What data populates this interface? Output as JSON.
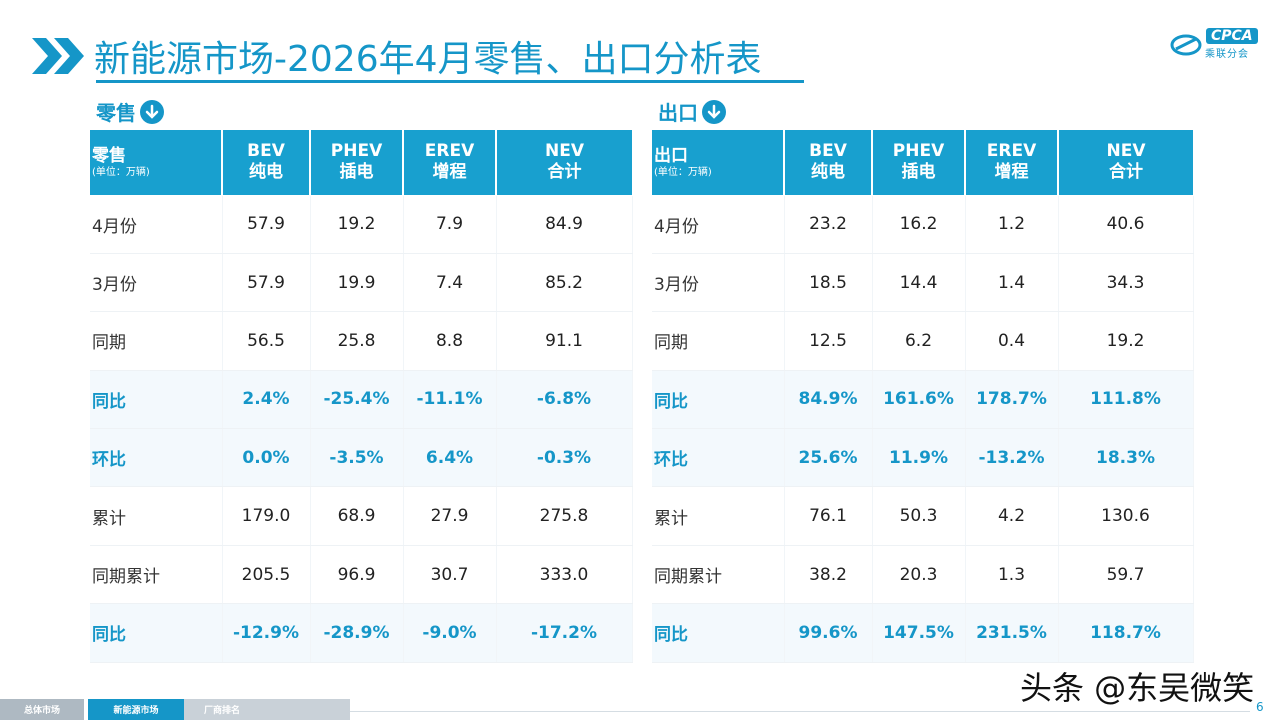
{
  "page_title": "新能源市场-2026年4月零售、出口分析表",
  "logo": {
    "en": "CPCA",
    "cn": "乘联分会"
  },
  "colors": {
    "accent": "#1596c8",
    "header_bg": "#18a0cf",
    "pct_row_bg": "#f3f9fd"
  },
  "retail": {
    "section_label": "零售",
    "header": {
      "label": "零售",
      "unit": "(单位：万辆)"
    },
    "columns": [
      {
        "en": "BEV",
        "cn": "纯电"
      },
      {
        "en": "PHEV",
        "cn": "插电"
      },
      {
        "en": "EREV",
        "cn": "增程"
      },
      {
        "en": "NEV",
        "cn": "合计"
      }
    ],
    "rows": [
      {
        "label": "4月份",
        "values": [
          "57.9",
          "19.2",
          "7.9",
          "84.9"
        ],
        "pct": false
      },
      {
        "label": "3月份",
        "values": [
          "57.9",
          "19.9",
          "7.4",
          "85.2"
        ],
        "pct": false
      },
      {
        "label": "同期",
        "values": [
          "56.5",
          "25.8",
          "8.8",
          "91.1"
        ],
        "pct": false
      },
      {
        "label": "同比",
        "values": [
          "2.4%",
          "-25.4%",
          "-11.1%",
          "-6.8%"
        ],
        "pct": true
      },
      {
        "label": "环比",
        "values": [
          "0.0%",
          "-3.5%",
          "6.4%",
          "-0.3%"
        ],
        "pct": true
      },
      {
        "label": "累计",
        "values": [
          "179.0",
          "68.9",
          "27.9",
          "275.8"
        ],
        "pct": false
      },
      {
        "label": "同期累计",
        "values": [
          "205.5",
          "96.9",
          "30.7",
          "333.0"
        ],
        "pct": false
      },
      {
        "label": "同比",
        "values": [
          "-12.9%",
          "-28.9%",
          "-9.0%",
          "-17.2%"
        ],
        "pct": true
      }
    ]
  },
  "export": {
    "section_label": "出口",
    "header": {
      "label": "出口",
      "unit": "(单位：万辆)"
    },
    "columns": [
      {
        "en": "BEV",
        "cn": "纯电"
      },
      {
        "en": "PHEV",
        "cn": "插电"
      },
      {
        "en": "EREV",
        "cn": "增程"
      },
      {
        "en": "NEV",
        "cn": "合计"
      }
    ],
    "rows": [
      {
        "label": "4月份",
        "values": [
          "23.2",
          "16.2",
          "1.2",
          "40.6"
        ],
        "pct": false
      },
      {
        "label": "3月份",
        "values": [
          "18.5",
          "14.4",
          "1.4",
          "34.3"
        ],
        "pct": false
      },
      {
        "label": "同期",
        "values": [
          "12.5",
          "6.2",
          "0.4",
          "19.2"
        ],
        "pct": false
      },
      {
        "label": "同比",
        "values": [
          "84.9%",
          "161.6%",
          "178.7%",
          "111.8%"
        ],
        "pct": true
      },
      {
        "label": "环比",
        "values": [
          "25.6%",
          "11.9%",
          "-13.2%",
          "18.3%"
        ],
        "pct": true
      },
      {
        "label": "累计",
        "values": [
          "76.1",
          "50.3",
          "4.2",
          "130.6"
        ],
        "pct": false
      },
      {
        "label": "同期累计",
        "values": [
          "38.2",
          "20.3",
          "1.3",
          "59.7"
        ],
        "pct": false
      },
      {
        "label": "同比",
        "values": [
          "99.6%",
          "147.5%",
          "231.5%",
          "118.7%"
        ],
        "pct": true
      }
    ]
  },
  "bottom_nav": {
    "tabs": [
      {
        "label": "总体市场",
        "active": false
      },
      {
        "label": "新能源市场",
        "active": true
      },
      {
        "label": "厂商排名",
        "active": false
      }
    ]
  },
  "watermark": "头条 @东吴微笑",
  "page_number": "6"
}
